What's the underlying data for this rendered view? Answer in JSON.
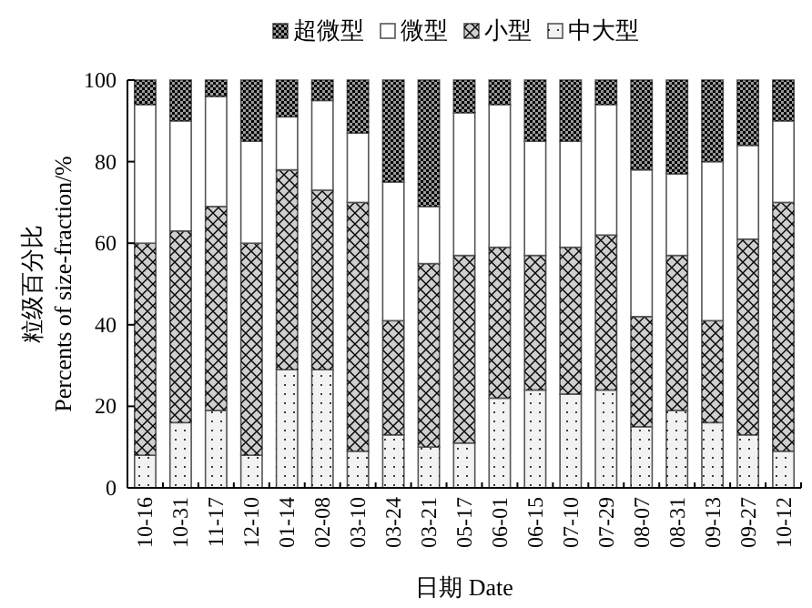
{
  "chart_data": {
    "type": "bar",
    "stacked": true,
    "xlabel": "日期  Date",
    "ylabel": "粒级百分比\nPercents of size-fraction/%",
    "categories": [
      "10-16",
      "10-31",
      "11-17",
      "12-10",
      "01-14",
      "02-08",
      "03-10",
      "03-24",
      "03-21",
      "05-17",
      "06-01",
      "06-15",
      "07-10",
      "07-29",
      "08-07",
      "08-31",
      "09-13",
      "09-27",
      "10-12"
    ],
    "series": [
      {
        "name": "中大型",
        "color": "#f2f2f2",
        "values": [
          8,
          16,
          19,
          8,
          29,
          29,
          9,
          13,
          10,
          11,
          22,
          24,
          23,
          24,
          15,
          19,
          16,
          13,
          9
        ]
      },
      {
        "name": "小型",
        "color": "#cfcfcf",
        "values": [
          52,
          47,
          50,
          52,
          49,
          44,
          61,
          28,
          45,
          46,
          37,
          33,
          36,
          38,
          27,
          38,
          25,
          48,
          61
        ]
      },
      {
        "name": "微型",
        "color": "#ffffff",
        "values": [
          34,
          27,
          27,
          25,
          13,
          22,
          17,
          34,
          14,
          35,
          35,
          28,
          26,
          32,
          36,
          20,
          39,
          23,
          20
        ]
      },
      {
        "name": "超微型",
        "color": "#9a9a9a",
        "values": [
          6,
          10,
          4,
          15,
          9,
          5,
          13,
          25,
          31,
          8,
          6,
          15,
          15,
          6,
          22,
          23,
          20,
          16,
          10
        ]
      }
    ],
    "ylim": [
      0,
      100
    ],
    "yticks": [
      0,
      20,
      40,
      60,
      80,
      100
    ],
    "grid": false,
    "legend": "top"
  }
}
